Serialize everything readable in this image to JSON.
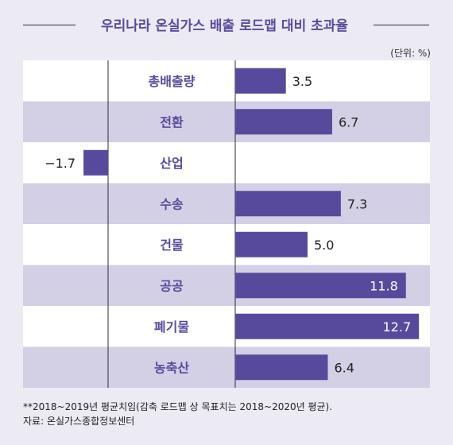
{
  "title": "우리나라 온실가스 배출 로드맵 대비 초과율",
  "unit": "(단위: %)",
  "footnote": "**2018~2019년 평균치임(감축 로드맵 상 목표치는 2018~2020년 평균).",
  "source": "자료: 온실가스종합정보센터",
  "colors": {
    "bar": "#574a9c",
    "label": "#5b4a9e",
    "band_dark": "#d3cfe5",
    "band_light": "#ffffff",
    "background": "#eceaf3",
    "value_text": "#222222",
    "value_text_inside": "#ffffff"
  },
  "chart_data": {
    "type": "bar",
    "orientation": "horizontal",
    "categories": [
      "총배출량",
      "전환",
      "산업",
      "수송",
      "건물",
      "공공",
      "폐기물",
      "농축산"
    ],
    "values": [
      3.5,
      6.7,
      -1.7,
      7.3,
      5.0,
      11.8,
      12.7,
      6.4
    ],
    "value_labels": [
      "3.5",
      "6.7",
      "−1.7",
      "7.3",
      "5.0",
      "11.8",
      "12.7",
      "6.4"
    ],
    "title": "우리나라 온실가스 배출 로드맵 대비 초과율",
    "xlabel": "",
    "ylabel": "",
    "unit": "(단위: %)"
  }
}
